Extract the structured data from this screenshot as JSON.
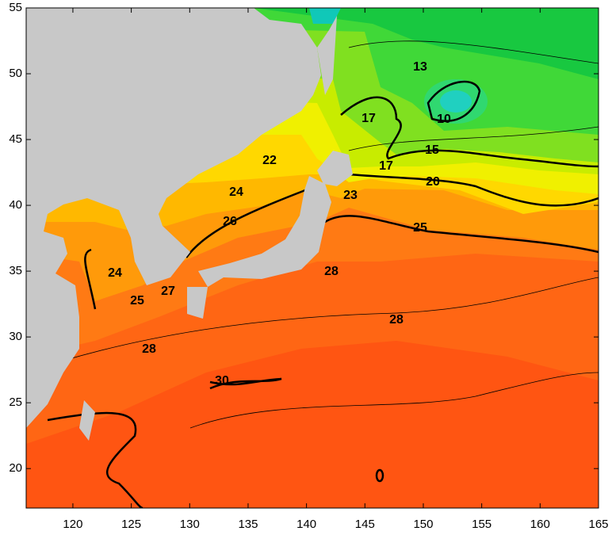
{
  "map": {
    "xlim": [
      116,
      165
    ],
    "ylim": [
      17,
      55
    ],
    "xticks": [
      120,
      125,
      130,
      135,
      140,
      145,
      150,
      155,
      160,
      165
    ],
    "yticks": [
      20,
      25,
      30,
      35,
      40,
      45,
      50,
      55
    ],
    "contour_labels": [
      13,
      10,
      17,
      15,
      17,
      20,
      22,
      24,
      23,
      26,
      25,
      24,
      25,
      27,
      28,
      28,
      28,
      30
    ]
  }
}
